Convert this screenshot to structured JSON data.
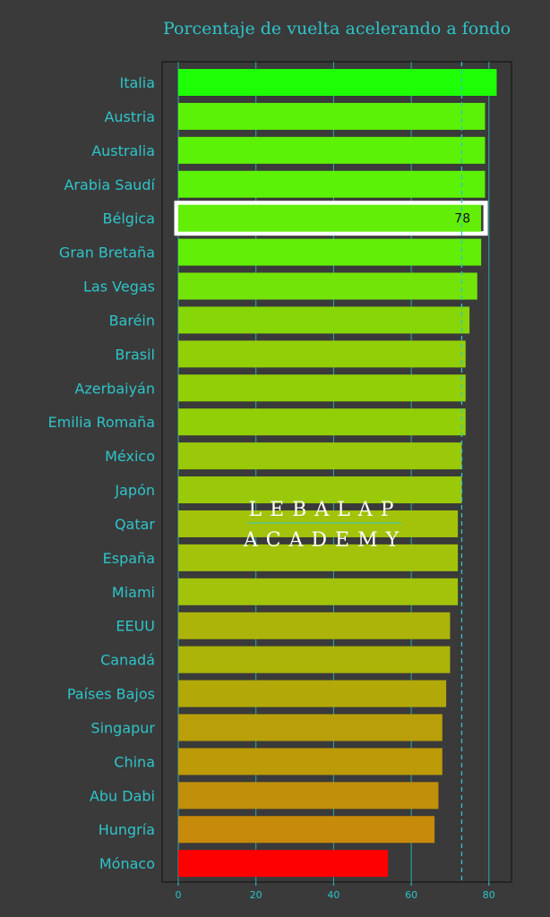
{
  "chart_data": {
    "type": "bar",
    "orientation": "horizontal",
    "title": "Porcentaje de vuelta acelerando a fondo",
    "categories": [
      "Italia",
      "Austria",
      "Australia",
      "Arabia Saudí",
      "Bélgica",
      "Gran Bretaña",
      "Las Vegas",
      "Baréin",
      "Brasil",
      "Azerbaiyán",
      "Emilia Romaña",
      "México",
      "Japón",
      "Qatar",
      "España",
      "Miami",
      "EEUU",
      "Canadá",
      "Países Bajos",
      "Singapur",
      "China",
      "Abu Dabi",
      "Hungría",
      "Mónaco"
    ],
    "values": [
      82,
      79,
      79,
      79,
      78,
      78,
      77,
      75,
      74,
      74,
      74,
      73,
      73,
      72,
      72,
      72,
      70,
      70,
      69,
      68,
      68,
      67,
      66,
      54
    ],
    "colors": [
      "#1efe04",
      "#5cf206",
      "#5cf206",
      "#5cf206",
      "#62ee06",
      "#62ee06",
      "#73e407",
      "#86d608",
      "#92cf07",
      "#92cf07",
      "#92cf07",
      "#9ac909",
      "#9ac909",
      "#a2c30a",
      "#a2c30a",
      "#a2c30a",
      "#acb409",
      "#acb409",
      "#b2a909",
      "#b99f09",
      "#bc9a08",
      "#c18f09",
      "#c88a0b",
      "#fe0000"
    ],
    "highlight": {
      "category": "Bélgica",
      "value_label": "78"
    },
    "reference_line": {
      "value": 73,
      "style": "dashed"
    },
    "xlim": [
      0,
      85
    ],
    "xticks": [
      0,
      20,
      40,
      60,
      80
    ],
    "xlabel": "",
    "ylabel": "",
    "grid": "vertical",
    "watermark": [
      "LEBALAP",
      "ACADEMY"
    ]
  }
}
